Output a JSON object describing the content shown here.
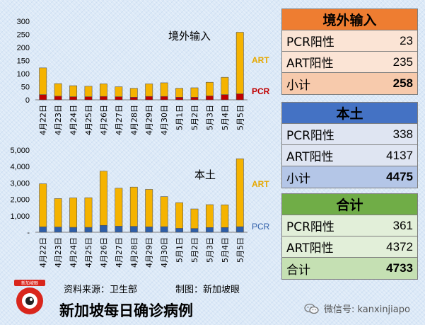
{
  "chart_data": [
    {
      "type": "bar",
      "stacked": true,
      "title": "境外输入",
      "categories": [
        "4月22日",
        "4月23日",
        "4月24日",
        "4月25日",
        "4月26日",
        "4月27日",
        "4月28日",
        "4月29日",
        "4月30日",
        "5月1日",
        "5月2日",
        "5月3日",
        "5月4日",
        "5月5日"
      ],
      "series": [
        {
          "name": "PCR",
          "color": "#c00000",
          "values": [
            20,
            14,
            12,
            12,
            13,
            12,
            10,
            13,
            13,
            10,
            10,
            15,
            20,
            23
          ]
        },
        {
          "name": "ART",
          "color": "#f5b300",
          "values": [
            102,
            48,
            42,
            40,
            48,
            38,
            34,
            48,
            52,
            34,
            36,
            52,
            66,
            235
          ]
        }
      ],
      "ylim": [
        0,
        300
      ],
      "yticks": [
        "0",
        "50",
        "100",
        "150",
        "200",
        "250",
        "300"
      ],
      "legend_position": "right"
    },
    {
      "type": "bar",
      "stacked": true,
      "title": "本土",
      "categories": [
        "4月22日",
        "4月23日",
        "4月24日",
        "4月25日",
        "4月26日",
        "4月27日",
        "4月28日",
        "4月29日",
        "4月30日",
        "5月1日",
        "5月2日",
        "5月3日",
        "5月4日",
        "5月5日"
      ],
      "series": [
        {
          "name": "PCR",
          "color": "#2e5ea8",
          "values": [
            330,
            320,
            300,
            300,
            420,
            370,
            360,
            330,
            340,
            240,
            230,
            290,
            290,
            338
          ]
        },
        {
          "name": "ART",
          "color": "#f5b300",
          "values": [
            2620,
            1730,
            1790,
            1800,
            3300,
            2310,
            2390,
            2280,
            1830,
            1560,
            1190,
            1390,
            1380,
            4137
          ]
        }
      ],
      "ylim": [
        0,
        5000
      ],
      "yticks": [
        "-",
        "1,000",
        "2,000",
        "3,000",
        "4,000",
        "5,000"
      ],
      "legend_position": "right"
    }
  ],
  "tables": {
    "imported": {
      "header": "境外输入",
      "rows": [
        {
          "label": "PCR阳性",
          "value": "23"
        },
        {
          "label": "ART阳性",
          "value": "235"
        },
        {
          "label": "小计",
          "value": "258"
        }
      ],
      "color": "#ee7d31"
    },
    "local": {
      "header": "本土",
      "rows": [
        {
          "label": "PCR阳性",
          "value": "338"
        },
        {
          "label": "ART阳性",
          "value": "4137"
        },
        {
          "label": "小计",
          "value": "4475"
        }
      ],
      "color": "#4472c4"
    },
    "total": {
      "header": "合计",
      "rows": [
        {
          "label": "PCR阳性",
          "value": "361"
        },
        {
          "label": "ART阳性",
          "value": "4372"
        },
        {
          "label": "合计",
          "value": "4733"
        }
      ],
      "color": "#70ad47"
    }
  },
  "footer": {
    "source": "资料来源：卫生部",
    "made_by": "制图：新加坡眼",
    "title": "新加坡每日确诊病例",
    "wechat": "微信号: kanxinjiapo",
    "logo_text": "新加坡眼"
  }
}
